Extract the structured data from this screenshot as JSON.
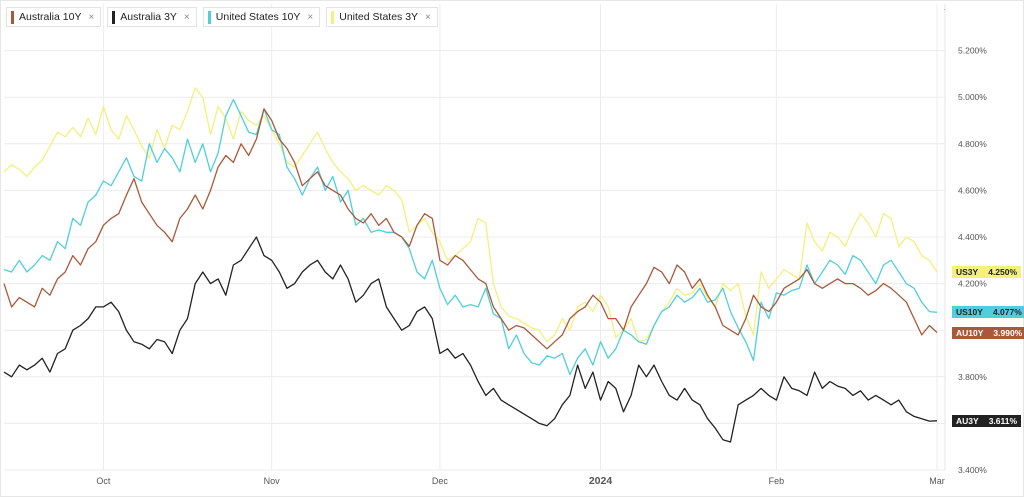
{
  "legend": [
    {
      "label": "Australia 10Y",
      "color": "#a9583a",
      "close": "×"
    },
    {
      "label": "Australia 3Y",
      "color": "#222222",
      "close": "×"
    },
    {
      "label": "United States 10Y",
      "color": "#4fcfdc",
      "close": "×"
    },
    {
      "label": "United States 3Y",
      "color": "#f3f07c",
      "close": "×"
    }
  ],
  "tags": [
    {
      "name": "US3Y",
      "value": "4.250%",
      "bg": "#f3f07c",
      "fg": "#222222"
    },
    {
      "name": "US10Y",
      "value": "4.077%",
      "bg": "#4fcfdc",
      "fg": "#222222"
    },
    {
      "name": "AU10Y",
      "value": "3.990%",
      "bg": "#a9583a",
      "fg": "#ffffff"
    },
    {
      "name": "AU3Y",
      "value": "3.611%",
      "bg": "#222222",
      "fg": "#ffffff"
    }
  ],
  "settings_icon": "·",
  "chart_data": {
    "type": "line",
    "x_labels": [
      {
        "label": "Oct",
        "i": 13
      },
      {
        "label": "Nov",
        "i": 35
      },
      {
        "label": "Dec",
        "i": 57
      },
      {
        "label": "2024",
        "i": 78,
        "bold": true
      },
      {
        "label": "Feb",
        "i": 101
      },
      {
        "label": "Mar",
        "i": 122
      }
    ],
    "yticks": [
      3.4,
      3.6,
      3.8,
      4.0,
      4.2,
      4.4,
      4.6,
      4.8,
      5.0,
      5.2
    ],
    "ytick_labels": [
      "3.400%",
      "3.600%",
      "3.800%",
      "4.000%",
      "4.200%",
      "4.400%",
      "4.600%",
      "4.800%",
      "5.000%",
      "5.200%"
    ],
    "ylim": [
      3.4,
      5.4
    ],
    "grid": true,
    "legend_position": "top-left",
    "series": [
      {
        "name": "United States 3Y",
        "color": "#f3f07c",
        "values": [
          4.68,
          4.71,
          4.69,
          4.66,
          4.7,
          4.73,
          4.79,
          4.85,
          4.83,
          4.87,
          4.83,
          4.91,
          4.84,
          4.96,
          4.86,
          4.82,
          4.92,
          4.86,
          4.79,
          4.74,
          4.86,
          4.78,
          4.88,
          4.86,
          4.94,
          5.04,
          5.0,
          4.84,
          4.96,
          4.91,
          4.82,
          4.94,
          4.9,
          4.88,
          4.92,
          4.86,
          4.8,
          4.72,
          4.7,
          4.75,
          4.8,
          4.85,
          4.78,
          4.72,
          4.68,
          4.65,
          4.6,
          4.62,
          4.6,
          4.58,
          4.62,
          4.6,
          4.56,
          4.42,
          4.45,
          4.48,
          4.42,
          4.38,
          4.3,
          4.32,
          4.35,
          4.38,
          4.48,
          4.46,
          4.2,
          4.1,
          4.06,
          4.05,
          4.03,
          4.01,
          4.0,
          3.95,
          3.98,
          4.05,
          4.0,
          4.1,
          4.12,
          4.08,
          4.15,
          4.1,
          3.97,
          4.0,
          4.05,
          3.95,
          3.96,
          4.02,
          4.08,
          4.12,
          4.18,
          4.15,
          4.16,
          4.2,
          4.14,
          4.1,
          4.2,
          4.17,
          4.2,
          4.06,
          3.98,
          4.25,
          4.18,
          4.22,
          4.26,
          4.24,
          4.22,
          4.46,
          4.38,
          4.34,
          4.42,
          4.4,
          4.36,
          4.44,
          4.5,
          4.46,
          4.4,
          4.5,
          4.48,
          4.36,
          4.4,
          4.38,
          4.32,
          4.3,
          4.25
        ]
      },
      {
        "name": "United States 10Y",
        "color": "#4fcfdc",
        "values": [
          4.26,
          4.25,
          4.3,
          4.25,
          4.28,
          4.32,
          4.3,
          4.38,
          4.35,
          4.48,
          4.45,
          4.55,
          4.58,
          4.64,
          4.62,
          4.68,
          4.74,
          4.66,
          4.64,
          4.8,
          4.72,
          4.78,
          4.74,
          4.68,
          4.82,
          4.72,
          4.8,
          4.68,
          4.76,
          4.92,
          4.99,
          4.92,
          4.85,
          4.84,
          4.95,
          4.86,
          4.84,
          4.7,
          4.65,
          4.58,
          4.65,
          4.7,
          4.6,
          4.66,
          4.55,
          4.6,
          4.45,
          4.48,
          4.42,
          4.43,
          4.42,
          4.42,
          4.4,
          4.35,
          4.25,
          4.22,
          4.3,
          4.18,
          4.11,
          4.15,
          4.1,
          4.11,
          4.1,
          4.18,
          4.07,
          4.05,
          3.92,
          3.98,
          3.9,
          3.86,
          3.85,
          3.89,
          3.88,
          3.9,
          3.81,
          3.88,
          3.92,
          3.85,
          3.95,
          3.88,
          3.92,
          4.0,
          3.98,
          3.95,
          3.94,
          4.02,
          4.08,
          4.1,
          4.15,
          4.12,
          4.14,
          4.18,
          4.12,
          4.13,
          4.18,
          4.08,
          4.01,
          3.95,
          3.87,
          4.12,
          4.05,
          4.16,
          4.15,
          4.17,
          4.18,
          4.28,
          4.2,
          4.25,
          4.3,
          4.28,
          4.24,
          4.32,
          4.3,
          4.25,
          4.2,
          4.28,
          4.3,
          4.25,
          4.2,
          4.18,
          4.12,
          4.08,
          4.077
        ]
      },
      {
        "name": "Australia 10Y",
        "color": "#a9583a",
        "values": [
          4.2,
          4.1,
          4.14,
          4.12,
          4.1,
          4.18,
          4.15,
          4.22,
          4.25,
          4.32,
          4.28,
          4.35,
          4.38,
          4.45,
          4.48,
          4.5,
          4.58,
          4.65,
          4.55,
          4.5,
          4.45,
          4.42,
          4.38,
          4.48,
          4.52,
          4.58,
          4.52,
          4.6,
          4.7,
          4.75,
          4.72,
          4.8,
          4.75,
          4.82,
          4.95,
          4.9,
          4.82,
          4.78,
          4.72,
          4.62,
          4.65,
          4.68,
          4.62,
          4.6,
          4.58,
          4.52,
          4.48,
          4.46,
          4.5,
          4.45,
          4.48,
          4.42,
          4.4,
          4.36,
          4.45,
          4.5,
          4.48,
          4.3,
          4.28,
          4.32,
          4.3,
          4.26,
          4.22,
          4.2,
          4.1,
          4.05,
          4.0,
          4.02,
          4.01,
          3.98,
          3.95,
          3.92,
          3.95,
          3.98,
          4.05,
          4.08,
          4.1,
          4.15,
          4.12,
          4.05,
          4.05,
          4.0,
          4.1,
          4.15,
          4.2,
          4.27,
          4.25,
          4.2,
          4.28,
          4.25,
          4.18,
          4.22,
          4.15,
          4.1,
          4.02,
          4.0,
          3.98,
          4.05,
          4.15,
          4.1,
          4.08,
          4.12,
          4.18,
          4.2,
          4.22,
          4.26,
          4.2,
          4.18,
          4.2,
          4.22,
          4.2,
          4.2,
          4.18,
          4.15,
          4.17,
          4.2,
          4.18,
          4.15,
          4.12,
          4.05,
          3.98,
          4.02,
          3.99
        ]
      },
      {
        "name": "Australia 3Y",
        "color": "#222222",
        "values": [
          3.82,
          3.8,
          3.85,
          3.83,
          3.85,
          3.88,
          3.82,
          3.9,
          3.92,
          4.0,
          4.02,
          4.05,
          4.1,
          4.1,
          4.12,
          4.08,
          4.0,
          3.95,
          3.94,
          3.92,
          3.96,
          3.95,
          3.9,
          4.0,
          4.05,
          4.2,
          4.25,
          4.2,
          4.22,
          4.15,
          4.28,
          4.3,
          4.35,
          4.4,
          4.32,
          4.3,
          4.25,
          4.18,
          4.2,
          4.25,
          4.28,
          4.3,
          4.25,
          4.22,
          4.28,
          4.22,
          4.12,
          4.15,
          4.2,
          4.22,
          4.1,
          4.05,
          4.0,
          4.02,
          4.08,
          4.1,
          4.05,
          3.9,
          3.92,
          3.88,
          3.9,
          3.85,
          3.78,
          3.72,
          3.75,
          3.7,
          3.68,
          3.66,
          3.64,
          3.62,
          3.6,
          3.59,
          3.62,
          3.68,
          3.72,
          3.85,
          3.75,
          3.82,
          3.7,
          3.78,
          3.75,
          3.65,
          3.72,
          3.85,
          3.8,
          3.85,
          3.78,
          3.72,
          3.7,
          3.75,
          3.7,
          3.68,
          3.62,
          3.58,
          3.53,
          3.52,
          3.68,
          3.7,
          3.72,
          3.75,
          3.72,
          3.7,
          3.8,
          3.75,
          3.74,
          3.72,
          3.82,
          3.75,
          3.78,
          3.76,
          3.75,
          3.72,
          3.74,
          3.7,
          3.72,
          3.7,
          3.68,
          3.7,
          3.65,
          3.63,
          3.62,
          3.61,
          3.611
        ]
      }
    ]
  }
}
